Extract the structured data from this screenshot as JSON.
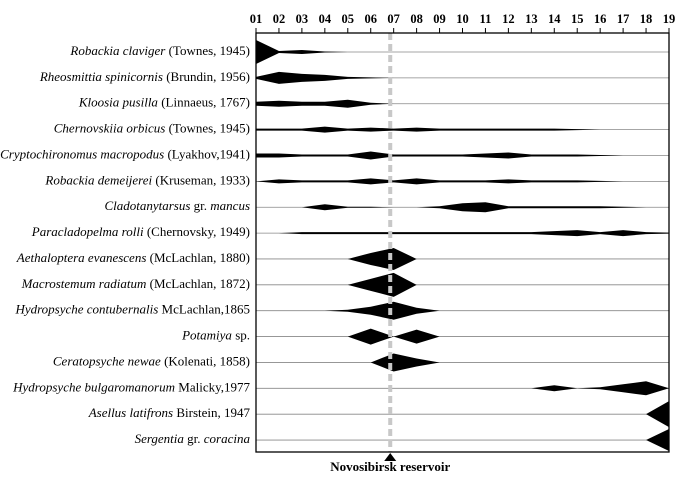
{
  "chart_data": {
    "type": "kite",
    "xlim": [
      1,
      19
    ],
    "xticks": [
      {
        "value": 1,
        "label": "01"
      },
      {
        "value": 2,
        "label": "02"
      },
      {
        "value": 3,
        "label": "03"
      },
      {
        "value": 4,
        "label": "04"
      },
      {
        "value": 5,
        "label": "05"
      },
      {
        "value": 6,
        "label": "06"
      },
      {
        "value": 7,
        "label": "07"
      },
      {
        "value": 8,
        "label": "08"
      },
      {
        "value": 9,
        "label": "09"
      },
      10,
      11,
      12,
      13,
      14,
      15,
      16,
      17,
      18,
      19
    ],
    "color": "#000000",
    "marker": {
      "label": "Novosibirsk reservoir",
      "position": 6.85,
      "color": "#c8c8c8"
    },
    "series": [
      {
        "name": [
          {
            "text": "Robackia claviger",
            "italic": true
          },
          {
            "text": " (Townes, 1945)",
            "italic": false
          }
        ],
        "values": [
          12,
          1,
          2,
          0.5,
          0,
          0,
          0,
          0,
          0,
          0,
          0,
          0,
          0,
          0,
          0,
          0,
          0,
          0,
          0
        ]
      },
      {
        "name": [
          {
            "text": "Rheosmittia spinicornis",
            "italic": true
          },
          {
            "text": " (Brundin, 1956)",
            "italic": false
          }
        ],
        "values": [
          1,
          6,
          4,
          3,
          1,
          0.5,
          0,
          0,
          0,
          0,
          0,
          0,
          0,
          0,
          0,
          0,
          0,
          0,
          0
        ]
      },
      {
        "name": [
          {
            "text": "Kloosia pusilla",
            "italic": true
          },
          {
            "text": " (Linnaeus, 1767)",
            "italic": false
          }
        ],
        "values": [
          2,
          3,
          2,
          2,
          4,
          1,
          0,
          0,
          0,
          0,
          0,
          0,
          0,
          0,
          0,
          0,
          0,
          0,
          0
        ]
      },
      {
        "name": [
          {
            "text": "Chernovskiia orbicus",
            "italic": true
          },
          {
            "text": " (Townes, 1945)",
            "italic": false
          }
        ],
        "values": [
          1,
          1,
          1,
          3,
          1,
          2,
          1,
          2,
          1,
          1,
          1,
          1,
          1,
          1,
          0.5,
          0,
          0,
          0,
          0
        ]
      },
      {
        "name": [
          {
            "text": "Cryptochironomus macropodus",
            "italic": true
          },
          {
            "text": " (Lyakhov,1941)",
            "italic": false
          }
        ],
        "values": [
          2,
          2,
          1,
          1,
          1,
          4,
          1,
          1,
          1,
          1,
          2,
          3,
          1,
          1,
          1,
          0.5,
          0,
          0,
          0
        ]
      },
      {
        "name": [
          {
            "text": "Robackia demeijerei",
            "italic": true
          },
          {
            "text": "  (Kruseman, 1933)",
            "italic": false
          }
        ],
        "values": [
          0,
          2,
          1,
          1,
          1,
          3,
          1,
          3,
          1,
          1,
          1,
          2,
          1,
          1,
          1,
          0.5,
          0,
          0,
          0
        ]
      },
      {
        "name": [
          {
            "text": "Cladotanytarsus",
            "italic": true
          },
          {
            "text": " gr. ",
            "italic": false
          },
          {
            "text": "mancus",
            "italic": true
          }
        ],
        "values": [
          0,
          0,
          0,
          3,
          0.5,
          0.5,
          0,
          0,
          1,
          4,
          5,
          1,
          1,
          1,
          1,
          1,
          0.5,
          0,
          0
        ]
      },
      {
        "name": [
          {
            "text": "Paracladopelma rolli",
            "italic": true
          },
          {
            "text": " (Chernovsky, 1949)",
            "italic": false
          }
        ],
        "values": [
          0,
          0,
          1,
          1,
          1,
          1,
          1,
          1,
          1,
          1,
          1,
          1,
          1,
          2,
          3,
          1,
          3,
          1,
          0.5
        ]
      },
      {
        "name": [
          {
            "text": "Aethaloptera evanescens",
            "italic": true
          },
          {
            "text": " (McLachlan, 1880)",
            "italic": false
          }
        ],
        "values": [
          0,
          0,
          0,
          0,
          0,
          6,
          11,
          0,
          0,
          0,
          0,
          0,
          0,
          0,
          0,
          0,
          0,
          0,
          0
        ]
      },
      {
        "name": [
          {
            "text": "Macrostemum radiatum",
            "italic": true
          },
          {
            "text": " (McLachlan, 1872)",
            "italic": false
          }
        ],
        "values": [
          0,
          0,
          0,
          0,
          0,
          6,
          12,
          0,
          0,
          0,
          0,
          0,
          0,
          0,
          0,
          0,
          0,
          0,
          0
        ]
      },
      {
        "name": [
          {
            "text": "Hydropsyche contubernalis",
            "italic": true
          },
          {
            "text": " McLachlan,1865",
            "italic": false
          }
        ],
        "values": [
          0,
          0,
          0,
          0,
          1,
          4,
          9,
          3,
          0,
          0,
          0,
          0,
          0,
          0,
          0,
          0,
          0,
          0,
          0
        ]
      },
      {
        "name": [
          {
            "text": "Potamiya",
            "italic": true
          },
          {
            "text": " sp.",
            "italic": false
          }
        ],
        "values": [
          0,
          0,
          0,
          0,
          0,
          8,
          0,
          7,
          0,
          0,
          0,
          0,
          0,
          0,
          0,
          0,
          0,
          0,
          0
        ]
      },
      {
        "name": [
          {
            "text": "Ceratopsyche newae",
            "italic": true
          },
          {
            "text": " (Kolenati, 1858)",
            "italic": false
          }
        ],
        "values": [
          0,
          0,
          0,
          0,
          0,
          0,
          9,
          4,
          0,
          0,
          0,
          0,
          0,
          0,
          0,
          0,
          0,
          0,
          0
        ]
      },
      {
        "name": [
          {
            "text": "Hydropsyche bulgaromanorum",
            "italic": true
          },
          {
            "text": " Malicky,1977",
            "italic": false
          }
        ],
        "values": [
          0,
          0,
          0,
          0,
          0,
          0,
          0,
          0,
          0,
          0,
          0,
          0,
          0,
          3,
          0,
          1,
          4,
          7,
          0
        ]
      },
      {
        "name": [
          {
            "text": "Asellus latifrons",
            "italic": true
          },
          {
            "text": " Birstein, 1947",
            "italic": false
          }
        ],
        "values": [
          0,
          0,
          0,
          0,
          0,
          0,
          0,
          0,
          0,
          0,
          0,
          0,
          0,
          0,
          0,
          0,
          0,
          0,
          13
        ]
      },
      {
        "name": [
          {
            "text": "Sergentia",
            "italic": true
          },
          {
            "text": " gr. ",
            "italic": false
          },
          {
            "text": "coracina",
            "italic": true
          }
        ],
        "values": [
          0,
          0,
          0,
          0,
          0,
          0,
          0,
          0,
          0,
          0,
          0,
          0,
          0,
          0,
          0,
          0,
          0,
          0,
          11
        ]
      }
    ]
  }
}
